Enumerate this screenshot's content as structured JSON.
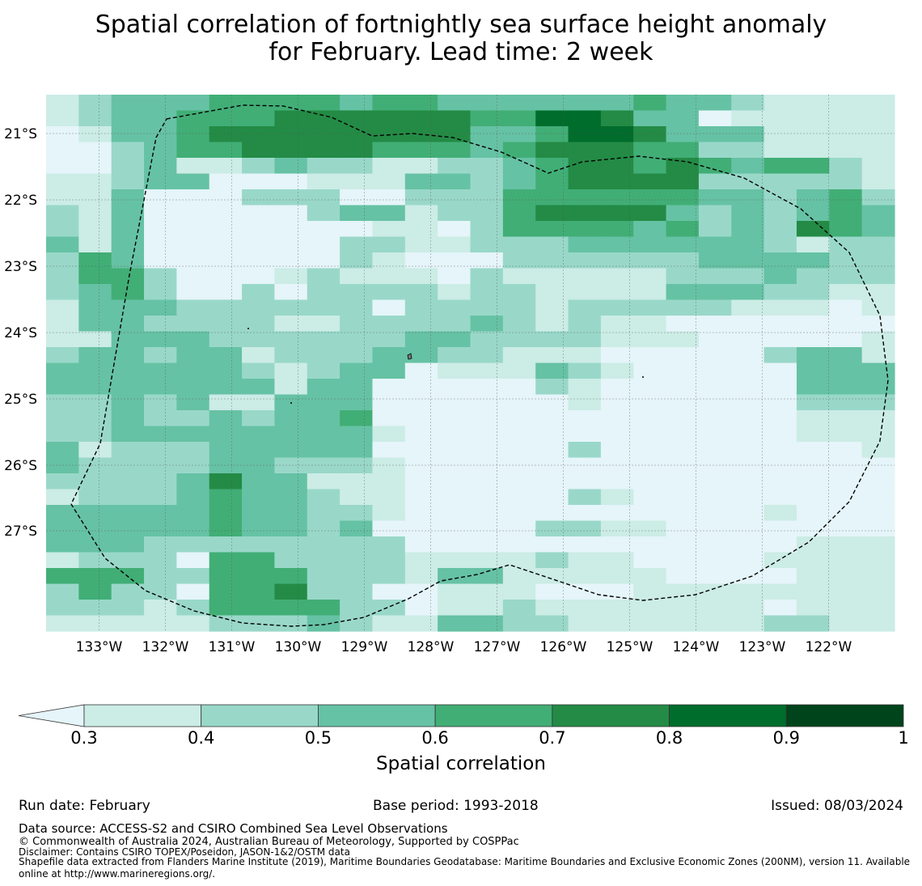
{
  "title": {
    "line1": "Spatial correlation of fortnightly sea surface height anomaly",
    "line2": "for February. Lead time: 2 week"
  },
  "map": {
    "lon_ticks": [
      "133°W",
      "132°W",
      "131°W",
      "130°W",
      "129°W",
      "128°W",
      "127°W",
      "126°W",
      "125°W",
      "124°W",
      "123°W",
      "122°W"
    ],
    "lat_ticks": [
      "21°S",
      "22°S",
      "23°S",
      "24°S",
      "25°S",
      "26°S",
      "27°S"
    ],
    "lon_range": [
      -133.8,
      -121.0
    ],
    "lat_range": [
      -28.5,
      -20.4
    ],
    "region": "Pitcairn Islands EEZ (200NM), dashed outline",
    "grid": [
      "12333444434433333343321111",
      "12334445555554466533011111",
      "01334555555553346653331111",
      "00234455554443455544221111",
      "00231123221122345545434421",
      "11233000111332345555222221",
      "11300022200222444444332342",
      "21300000233122455553232343",
      "21300000001102444434232543",
      "31300000022112223333332122",
      "24300000021000222222333322",
      "24420001211102111112223222",
      "23420020222212211113332211",
      "13332222220222212222211101",
      "13322221122223212110000000",
      "11333222222332222111000001",
      "23323312223322111000002331",
      "33333321233011132100000333",
      "33333331330000021000000333",
      "22323113330000001000000222",
      "22322323340000000000000111",
      "22333333331000000000000111",
      "31222333330000002000000001",
      "32222332221000000000000000",
      "22223533111000000000000000",
      "12223433211000002100000000",
      "33333433221000000000001000",
      "33333433230000022110000000",
      "33322222222000000000000111",
      "12220442222111121100001111",
      "44422444222133111110000111",
      "24220445220011100011111111",
      "22212444422011211111110111",
      "11111222321133221111112211"
    ]
  },
  "colorbar": {
    "ticks": [
      "0.3",
      "0.4",
      "0.5",
      "0.6",
      "0.7",
      "0.8",
      "0.9",
      "1"
    ],
    "label": "Spatial correlation"
  },
  "colors": {
    "below": "#e5f5f9",
    "bins": [
      "#ccece6",
      "#99d8c9",
      "#66c2a4",
      "#41ae76",
      "#238b45",
      "#006d2c",
      "#00441b"
    ],
    "outline": "#000000",
    "gridline": "#555555"
  },
  "footer": {
    "run_date": "Run date: February",
    "base_period": "Base period: 1993-2018",
    "issued": "Issued: 08/03/2024",
    "data_source": "Data source: ACCESS-S2 and CSIRO Combined Sea Level Observations",
    "copyright": "© Commonwealth of Australia 2024, Australian Bureau of Meteorology, Supported by COSPPac",
    "disclaimer": "Disclaimer: Contains CSIRO TOPEX/Poseidon, JASON-1&2/OSTM data",
    "shapefile_1": "Shapefile data extracted from Flanders Marine Institute (2019), Maritime Boundaries Geodatabase: Maritime Boundaries and Exclusive Economic Zones (200NM), version 11. Available",
    "shapefile_2": "online at http://www.marineregions.org/."
  }
}
